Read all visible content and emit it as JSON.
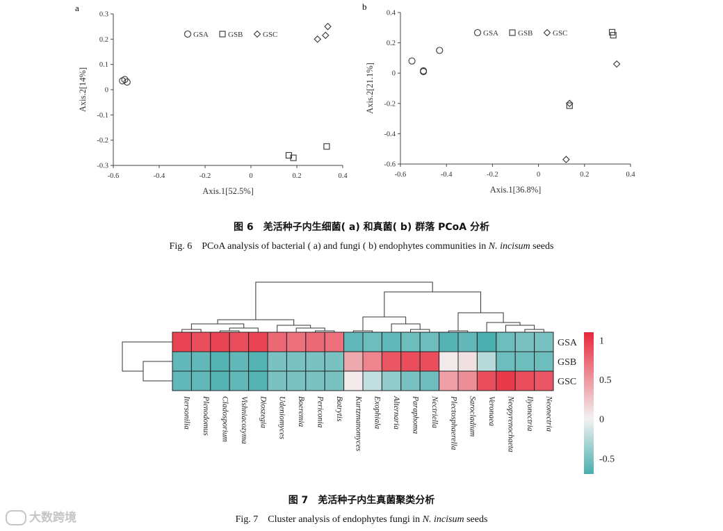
{
  "chart_data": [
    {
      "type": "scatter",
      "panel": "a",
      "xlabel": "Axis.1[52.5%]",
      "ylabel": "Axis.2[14%]",
      "xlim": [
        -0.6,
        0.4
      ],
      "ylim": [
        -0.3,
        0.3
      ],
      "xticks": [
        -0.6,
        -0.4,
        -0.2,
        0,
        0.2,
        0.4
      ],
      "xtick_labels": [
        "-0.6",
        "-0.4",
        "-0.2",
        "0",
        "0.2",
        "0.4"
      ],
      "yticks": [
        -0.3,
        -0.2,
        -0.1,
        0,
        0.1,
        0.2,
        0.3
      ],
      "ytick_labels": [
        "-0.3",
        "-0.2",
        "-0.1",
        "0",
        "0.1",
        "0.2",
        "0.3"
      ],
      "grid": false,
      "legend_position": "top-right",
      "series": [
        {
          "name": "GSA",
          "marker": "circle",
          "x": [
            -0.56,
            -0.55,
            -0.54
          ],
          "y": [
            0.035,
            0.04,
            0.03
          ]
        },
        {
          "name": "GSB",
          "marker": "square",
          "x": [
            0.165,
            0.185,
            0.33
          ],
          "y": [
            -0.26,
            -0.27,
            -0.225
          ]
        },
        {
          "name": "GSC",
          "marker": "diamond",
          "x": [
            0.29,
            0.325,
            0.335
          ],
          "y": [
            0.2,
            0.215,
            0.25
          ]
        }
      ]
    },
    {
      "type": "scatter",
      "panel": "b",
      "xlabel": "Axis.1[36.8%]",
      "ylabel": "Axis.2[21.1%]",
      "xlim": [
        -0.6,
        0.4
      ],
      "ylim": [
        -0.6,
        0.4
      ],
      "xticks": [
        -0.6,
        -0.4,
        -0.2,
        0,
        0.2,
        0.4
      ],
      "xtick_labels": [
        "-0.6",
        "-0.4",
        "-0.2",
        "0",
        "0.2",
        "0.4"
      ],
      "yticks": [
        -0.6,
        -0.4,
        -0.2,
        0,
        0.2,
        0.4
      ],
      "ytick_labels": [
        "-0.6",
        "-0.4",
        "-0.2",
        "0",
        "0.2",
        "0.4"
      ],
      "grid": false,
      "legend_position": "top-right",
      "series": [
        {
          "name": "GSA",
          "marker": "circle",
          "x": [
            -0.55,
            -0.5,
            -0.5,
            -0.43
          ],
          "y": [
            0.08,
            0.01,
            0.015,
            0.15
          ]
        },
        {
          "name": "GSB",
          "marker": "square",
          "x": [
            0.135,
            0.32,
            0.325
          ],
          "y": [
            -0.215,
            0.27,
            0.25
          ]
        },
        {
          "name": "GSC",
          "marker": "diamond",
          "x": [
            0.12,
            0.135,
            0.34
          ],
          "y": [
            -0.57,
            -0.2,
            0.06
          ]
        }
      ]
    },
    {
      "type": "heatmap",
      "rows": [
        "GSA",
        "GSB",
        "GSC"
      ],
      "columns": [
        "Itersonilia",
        "Plenodomus",
        "Cladosporium",
        "Vishniacozyma",
        "Dioszegia",
        "Udeniomyces",
        "Boeremia",
        "Periconia",
        "Botrytis",
        "Kurtzmanomyces",
        "Exophiala",
        "Alternaria",
        "Paraphoma",
        "Nectriella",
        "Plectosphaerella",
        "Sarocladium",
        "Veronaea",
        "Neopyrenochaeta",
        "Ilyonectria",
        "Neonectria"
      ],
      "values": [
        [
          0.95,
          0.9,
          0.95,
          0.9,
          0.95,
          0.75,
          0.7,
          0.75,
          0.7,
          -0.6,
          -0.55,
          -0.6,
          -0.55,
          -0.55,
          -0.65,
          -0.6,
          -0.7,
          -0.55,
          -0.5,
          -0.5
        ],
        [
          -0.6,
          -0.6,
          -0.65,
          -0.6,
          -0.65,
          -0.5,
          -0.5,
          -0.5,
          -0.5,
          0.4,
          0.6,
          0.85,
          0.9,
          0.9,
          0.05,
          0.1,
          -0.25,
          -0.55,
          -0.55,
          -0.55
        ],
        [
          -0.6,
          -0.6,
          -0.65,
          -0.6,
          -0.65,
          -0.5,
          -0.5,
          -0.5,
          -0.5,
          0.05,
          -0.2,
          -0.4,
          -0.5,
          -0.55,
          0.45,
          0.55,
          0.9,
          1.0,
          0.9,
          0.85
        ]
      ],
      "colorbar": {
        "ticks": [
          1,
          0.5,
          0,
          -0.5
        ],
        "tick_labels": [
          "1",
          "0.5",
          "0",
          "-0.5"
        ],
        "min": -0.7,
        "max": 1.1,
        "low_color": "#4aaeae",
        "mid_color": "#f2f2f2",
        "high_color": "#e8283a"
      },
      "row_dendrogram": true,
      "column_dendrogram": true
    }
  ],
  "panel_labels": {
    "a": "a",
    "b": "b"
  },
  "legend_labels": {
    "gsa": "GSA",
    "gsb": "GSB",
    "gsc": "GSC"
  },
  "captions": {
    "fig6_cn": "图 6　羌活种子内生细菌( a) 和真菌( b) 群落 PCoA 分析",
    "fig6_en_prefix": "Fig. 6　PCoA analysis of bacterial ( a)  and fungi ( b)  endophytes communities in ",
    "fig6_en_species": "N. incisum",
    "fig6_en_suffix": " seeds",
    "fig7_cn": "图 7　羌活种子内生真菌聚类分析",
    "fig7_en_prefix": "Fig. 7　Cluster analysis of endophytes fungi in ",
    "fig7_en_species": "N. incisum",
    "fig7_en_suffix": " seeds"
  },
  "watermark": "大数跨境"
}
